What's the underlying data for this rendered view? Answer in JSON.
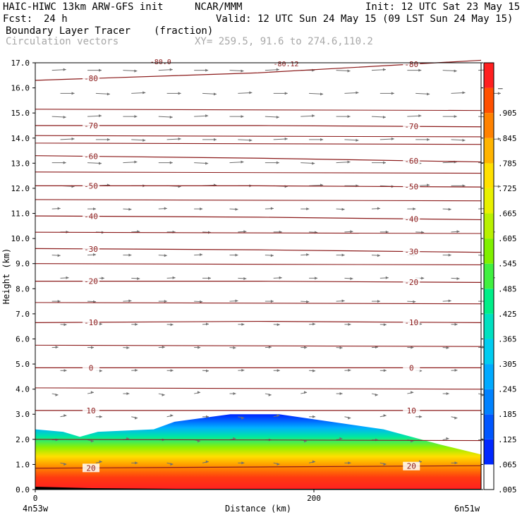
{
  "header": {
    "model": "HAIC-HIWC 13km ARW-GFS init",
    "org": "NCAR/MMM",
    "init": "Init: 12 UTC Sat 23 May 15",
    "fcst_label": "Fcst:",
    "fcst_value": "24 h",
    "valid": "Valid: 12 UTC Sun 24 May 15 (09 LST Sun 24 May 15)",
    "field": "Boundary Layer Tracer",
    "field_units": "(fraction)",
    "vectors": "Circulation vectors",
    "xy": "XY= 259.5, 91.6 to 274.6,110.2"
  },
  "colors": {
    "contour": "#8b1a1a",
    "vector": "#707070",
    "gray_text": "#a8a8a8"
  },
  "chart_data": {
    "type": "heatmap",
    "title": "Boundary Layer Tracer",
    "units": "(fraction)",
    "xlabel": "Distance (km)",
    "ylabel": "Height (km)",
    "xlim": [
      0,
      320
    ],
    "ylim": [
      0,
      17
    ],
    "x_ticks": [
      "0",
      "200"
    ],
    "x_end_labels": {
      "left": "4n53w",
      "right": "6n51w"
    },
    "y_ticks": [
      "0.0",
      "1.0",
      "2.0",
      "3.0",
      "4.0",
      "5.0",
      "6.0",
      "7.0",
      "8.0",
      "9.0",
      "10.0",
      "11.0",
      "12.0",
      "13.0",
      "14.0",
      "15.0",
      "16.0",
      "17.0"
    ],
    "colorbar": {
      "labels": [
        ".005",
        ".065",
        ".125",
        ".185",
        ".245",
        ".305",
        ".365",
        ".425",
        ".485",
        ".545",
        ".605",
        ".665",
        ".725",
        ".785",
        ".845",
        ".905",
        "–"
      ],
      "colors": [
        "#ffffff",
        "#0028ff",
        "#0056ff",
        "#0082ff",
        "#00aaff",
        "#00ccf0",
        "#00e0c0",
        "#00ee88",
        "#40f040",
        "#80f000",
        "#b8f000",
        "#e8f000",
        "#ffe000",
        "#ffb400",
        "#ff8200",
        "#ff5000",
        "#ff2020"
      ]
    },
    "tracer_top_km": [
      [
        0,
        2.4
      ],
      [
        20,
        2.3
      ],
      [
        32,
        2.1
      ],
      [
        45,
        2.3
      ],
      [
        85,
        2.4
      ],
      [
        100,
        2.7
      ],
      [
        140,
        3.0
      ],
      [
        175,
        3.0
      ],
      [
        200,
        2.8
      ],
      [
        250,
        2.4
      ],
      [
        290,
        1.8
      ],
      [
        320,
        1.4
      ]
    ],
    "temperature_contours": [
      {
        "label": "-80",
        "heights_km": [
          16.3,
          16.6,
          17.1
        ]
      },
      {
        "label": "-70",
        "heights_km": [
          14.5,
          14.5,
          14.45
        ]
      },
      {
        "label": "-60",
        "heights_km": [
          13.3,
          13.2,
          13.05
        ]
      },
      {
        "label": "-50",
        "heights_km": [
          12.1,
          12.1,
          12.05
        ]
      },
      {
        "label": "-40",
        "heights_km": [
          10.9,
          10.85,
          10.75
        ]
      },
      {
        "label": "-30",
        "heights_km": [
          9.6,
          9.55,
          9.45
        ]
      },
      {
        "label": "-20",
        "heights_km": [
          8.3,
          8.3,
          8.25
        ]
      },
      {
        "label": "-10",
        "heights_km": [
          6.65,
          6.7,
          6.65
        ]
      },
      {
        "label": "0",
        "heights_km": [
          4.85,
          4.85,
          4.85
        ]
      },
      {
        "label": "10",
        "heights_km": [
          3.15,
          3.15,
          3.15
        ]
      },
      {
        "label": "20",
        "heights_km": [
          0.85,
          0.9,
          0.95
        ]
      }
    ],
    "unlabeled_contours_km": [
      15.15,
      14.1,
      13.8,
      12.65,
      11.55,
      10.25,
      9.0,
      7.45,
      5.75,
      4.05,
      2.0
    ],
    "top_labels": [
      "-80.0",
      "-80.12"
    ],
    "grid": false
  }
}
